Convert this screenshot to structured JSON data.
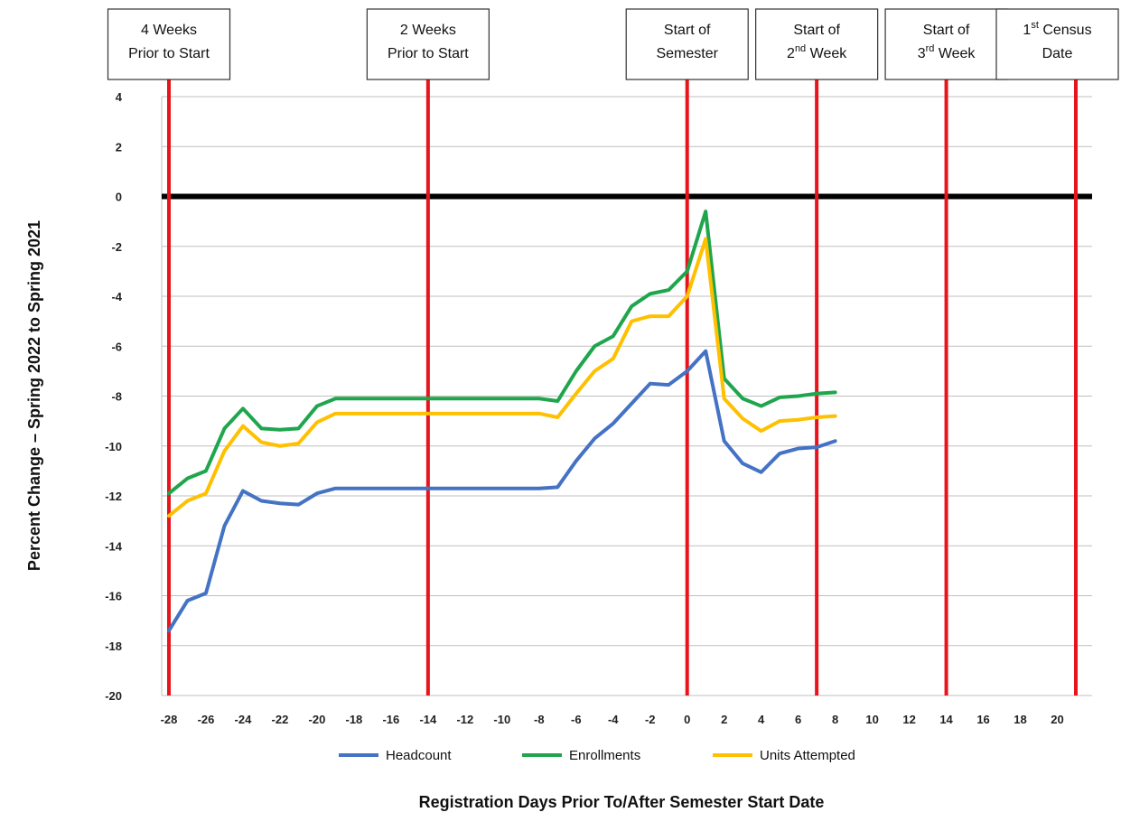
{
  "chart_data": {
    "type": "line",
    "title": "",
    "xlabel": "Registration Days Prior To/After Semester Start Date",
    "ylabel": "Percent Change – Spring 2022 to Spring 2021",
    "xlim": [
      -28,
      21
    ],
    "ylim": [
      -20,
      4
    ],
    "x_ticks": [
      -28,
      -26,
      -24,
      -22,
      -20,
      -18,
      -16,
      -14,
      -12,
      -10,
      -8,
      -6,
      -4,
      -2,
      0,
      2,
      4,
      6,
      8,
      10,
      12,
      14,
      16,
      18,
      20
    ],
    "y_ticks": [
      4,
      2,
      0,
      -2,
      -4,
      -6,
      -8,
      -10,
      -12,
      -14,
      -16,
      -18,
      -20
    ],
    "grid": "horizontal",
    "zero_line": true,
    "legend_position": "bottom",
    "x": [
      -28,
      -27,
      -26,
      -25,
      -24,
      -23,
      -22,
      -21,
      -20,
      -19,
      -18,
      -17,
      -16,
      -15,
      -14,
      -13,
      -12,
      -11,
      -10,
      -9,
      -8,
      -7,
      -6,
      -5,
      -4,
      -3,
      -2,
      -1,
      0,
      1,
      2,
      3,
      4,
      5,
      6,
      7,
      8
    ],
    "series": [
      {
        "name": "Headcount",
        "color": "#4472C4",
        "values": [
          -17.4,
          -16.2,
          -15.9,
          -13.2,
          -11.8,
          -12.2,
          -12.3,
          -12.35,
          -11.9,
          -11.7,
          -11.7,
          -11.7,
          -11.7,
          -11.7,
          -11.7,
          -11.7,
          -11.7,
          -11.7,
          -11.7,
          -11.7,
          -11.7,
          -11.65,
          -10.6,
          -9.7,
          -9.1,
          -8.3,
          -7.5,
          -7.55,
          -7.0,
          -6.2,
          -9.8,
          -10.7,
          -11.05,
          -10.3,
          -10.1,
          -10.05,
          -9.8
        ]
      },
      {
        "name": "Enrollments",
        "color": "#1FA64D",
        "values": [
          -11.9,
          -11.3,
          -11.0,
          -9.3,
          -8.5,
          -9.3,
          -9.35,
          -9.3,
          -8.4,
          -8.1,
          -8.1,
          -8.1,
          -8.1,
          -8.1,
          -8.1,
          -8.1,
          -8.1,
          -8.1,
          -8.1,
          -8.1,
          -8.1,
          -8.2,
          -7.0,
          -6.0,
          -5.6,
          -4.4,
          -3.9,
          -3.75,
          -3.0,
          -0.6,
          -7.3,
          -8.1,
          -8.4,
          -8.05,
          -8.0,
          -7.9,
          -7.85
        ]
      },
      {
        "name": "Units Attempted",
        "color": "#FFC000",
        "values": [
          -12.8,
          -12.2,
          -11.9,
          -10.2,
          -9.2,
          -9.85,
          -10.0,
          -9.9,
          -9.05,
          -8.7,
          -8.7,
          -8.7,
          -8.7,
          -8.7,
          -8.7,
          -8.7,
          -8.7,
          -8.7,
          -8.7,
          -8.7,
          -8.7,
          -8.85,
          -7.9,
          -7.0,
          -6.5,
          -5.0,
          -4.8,
          -4.8,
          -4.0,
          -1.7,
          -8.1,
          -8.9,
          -9.4,
          -9.0,
          -8.95,
          -8.85,
          -8.8
        ]
      }
    ],
    "markers": [
      {
        "x": -28,
        "lines": [
          {
            "text": "4 Weeks"
          },
          {
            "text": "Prior to Start"
          }
        ]
      },
      {
        "x": -14,
        "lines": [
          {
            "text": "2 Weeks"
          },
          {
            "text": "Prior to Start"
          }
        ]
      },
      {
        "x": 0,
        "lines": [
          {
            "text": "Start of"
          },
          {
            "text": "Semester"
          }
        ]
      },
      {
        "x": 7,
        "lines": [
          {
            "text": "Start of"
          },
          {
            "text": "2",
            "sup": "nd",
            "rest": " Week"
          }
        ]
      },
      {
        "x": 14,
        "lines": [
          {
            "text": "Start of"
          },
          {
            "text": "3",
            "sup": "rd",
            "rest": " Week"
          }
        ]
      },
      {
        "x": 21,
        "lines": [
          {
            "text": "1",
            "sup": "st",
            "rest": " Census"
          },
          {
            "text": "Date"
          }
        ]
      }
    ],
    "colors": {
      "marker_line": "#E8141C",
      "zero_line": "#000000",
      "grid": "#BFBFBF"
    }
  }
}
